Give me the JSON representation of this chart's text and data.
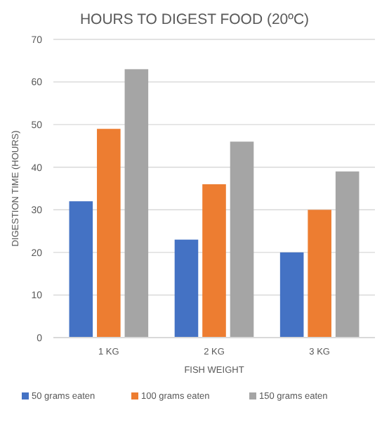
{
  "chart_data": {
    "type": "bar",
    "title": "HOURS TO DIGEST FOOD (20ºC)",
    "xlabel": "FISH WEIGHT",
    "ylabel": "DIGESTION TIME (HOURS)",
    "categories": [
      "1 KG",
      "2 KG",
      "3 KG"
    ],
    "series": [
      {
        "name": "50 grams eaten",
        "color": "#4472c4",
        "values": [
          32,
          23,
          20
        ]
      },
      {
        "name": "100 grams eaten",
        "color": "#ed7d31",
        "values": [
          49,
          36,
          30
        ]
      },
      {
        "name": "150 grams eaten",
        "color": "#a5a5a5",
        "values": [
          63,
          46,
          39
        ]
      }
    ],
    "ylim": [
      0,
      70
    ],
    "yticks": [
      0,
      10,
      20,
      30,
      40,
      50,
      60,
      70
    ],
    "grid": "y",
    "legend": "bottom"
  }
}
